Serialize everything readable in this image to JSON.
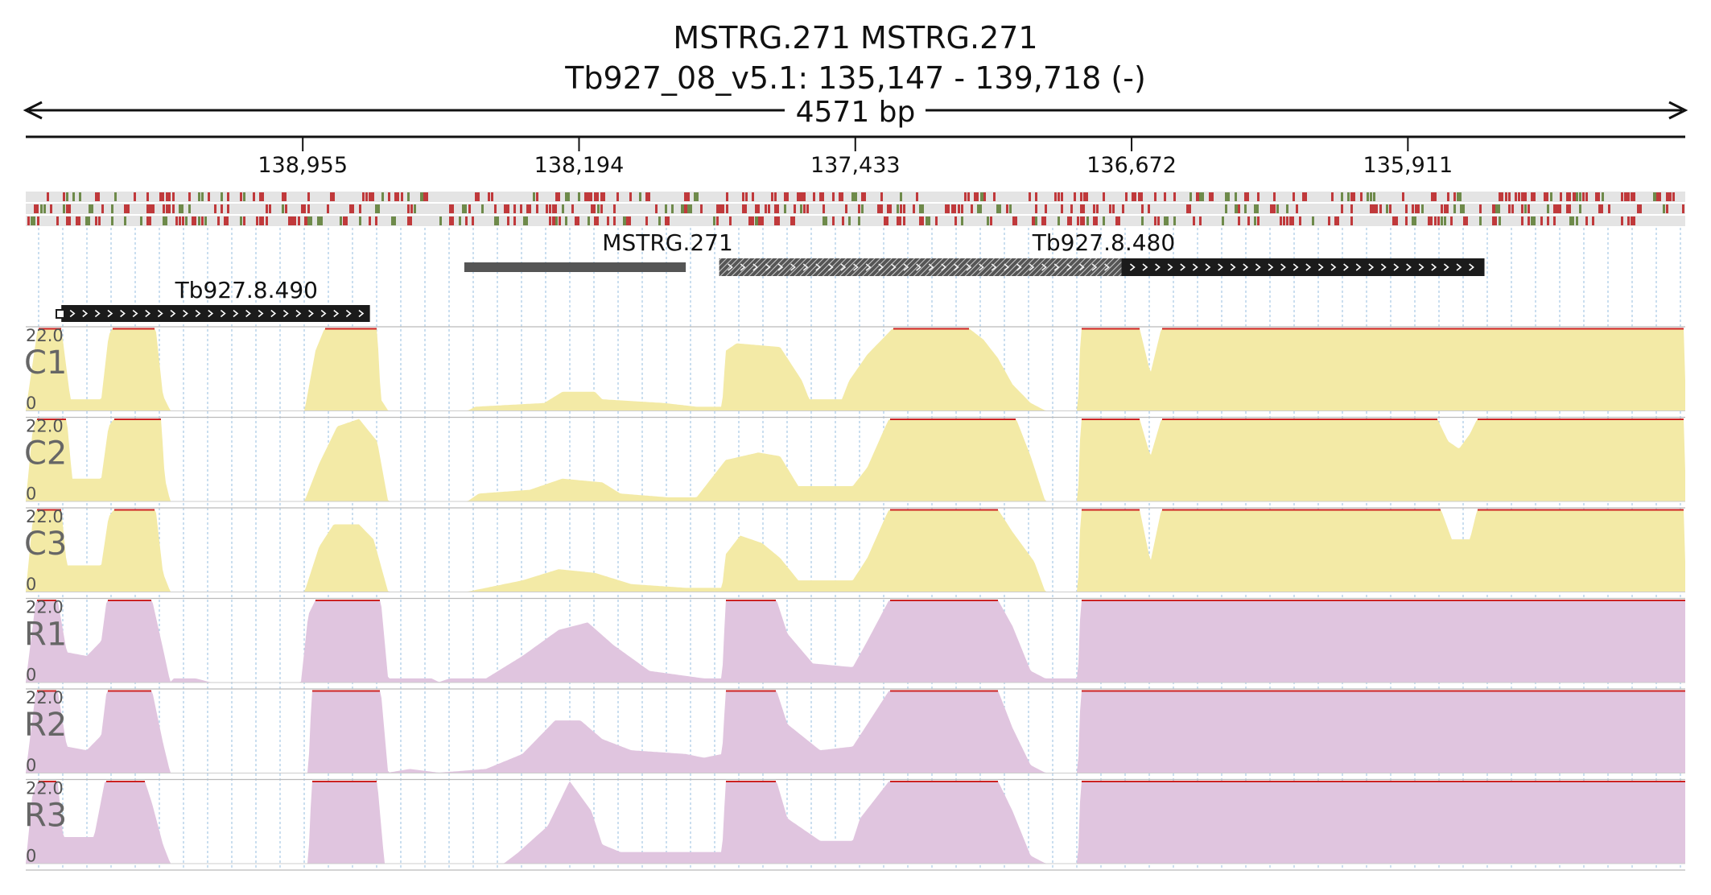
{
  "header": {
    "title_line1": "MSTRG.271  MSTRG.271",
    "title_line2": "Tb927_08_v5.1: 135,147 - 139,718 (-)",
    "span_label": "4571 bp"
  },
  "chart_data": {
    "type": "area",
    "chromosome": "Tb927_08_v5.1",
    "region": {
      "start": 135147,
      "end": 139718,
      "strand": "-"
    },
    "ruler": {
      "ticks": [
        {
          "pos": 138955,
          "label": "138,955"
        },
        {
          "pos": 138194,
          "label": "138,194"
        },
        {
          "pos": 137433,
          "label": "137,433"
        },
        {
          "pos": 136672,
          "label": "136,672"
        },
        {
          "pos": 135911,
          "label": "135,911"
        }
      ]
    },
    "genes": [
      {
        "name": "Tb927.8.490",
        "start": 138770,
        "end": 139620,
        "style": "black",
        "arrows": true
      },
      {
        "name": "MSTRG.271",
        "start": 137900,
        "end": 138510,
        "style": "gray",
        "arrows": false
      },
      {
        "name": "Tb927.8.480",
        "start": 136700,
        "end": 137808,
        "style": "hatched",
        "arrows": true
      },
      {
        "name": "Tb927.8.480",
        "start": 135700,
        "end": 136700,
        "style": "black",
        "arrows": true
      }
    ],
    "variant_colors": {
      "a": "#c0393b",
      "b": "#6e8a4a",
      "bg": "#e4e4e4"
    },
    "y_scale": {
      "max_label": "22.0",
      "min_label": "0",
      "ylim": [
        0,
        22
      ]
    },
    "saturation_line_color": "#cc2222",
    "series": [
      {
        "name": "C1",
        "color": "#f3eaa6",
        "profile": [
          [
            139718,
            0
          ],
          [
            139685,
            22
          ],
          [
            139620,
            22
          ],
          [
            139595,
            3
          ],
          [
            139510,
            3
          ],
          [
            139490,
            20
          ],
          [
            139480,
            22
          ],
          [
            139360,
            22
          ],
          [
            139340,
            4
          ],
          [
            139320,
            0
          ],
          [
            138950,
            0
          ],
          [
            138920,
            16
          ],
          [
            138895,
            22
          ],
          [
            138750,
            22
          ],
          [
            138740,
            3
          ],
          [
            138720,
            0
          ],
          [
            138500,
            0
          ],
          [
            138480,
            1
          ],
          [
            138290,
            2
          ],
          [
            138240,
            5
          ],
          [
            138150,
            5
          ],
          [
            138130,
            3
          ],
          [
            137960,
            2
          ],
          [
            137870,
            1
          ],
          [
            137800,
            1
          ],
          [
            137790,
            16
          ],
          [
            137760,
            18
          ],
          [
            137640,
            17
          ],
          [
            137580,
            8
          ],
          [
            137560,
            3
          ],
          [
            137470,
            3
          ],
          [
            137450,
            8
          ],
          [
            137400,
            15
          ],
          [
            137340,
            21
          ],
          [
            137330,
            22
          ],
          [
            137120,
            22
          ],
          [
            137080,
            19
          ],
          [
            137040,
            14
          ],
          [
            137000,
            7
          ],
          [
            136950,
            2
          ],
          [
            136910,
            0
          ],
          [
            136820,
            0
          ],
          [
            136812,
            22
          ],
          [
            136650,
            22
          ],
          [
            136620,
            10
          ],
          [
            136590,
            22
          ],
          [
            135150,
            22
          ],
          [
            135147,
            8
          ]
        ]
      },
      {
        "name": "C2",
        "color": "#f3eaa6",
        "profile": [
          [
            139718,
            0
          ],
          [
            139700,
            18
          ],
          [
            139690,
            22
          ],
          [
            139605,
            22
          ],
          [
            139590,
            6
          ],
          [
            139510,
            6
          ],
          [
            139490,
            20
          ],
          [
            139475,
            22
          ],
          [
            139345,
            22
          ],
          [
            139335,
            6
          ],
          [
            139320,
            0
          ],
          [
            138950,
            0
          ],
          [
            138910,
            10
          ],
          [
            138860,
            20
          ],
          [
            138800,
            22
          ],
          [
            138750,
            16
          ],
          [
            138720,
            0
          ],
          [
            138500,
            0
          ],
          [
            138470,
            2
          ],
          [
            138330,
            3
          ],
          [
            138240,
            6
          ],
          [
            138130,
            5
          ],
          [
            138080,
            2
          ],
          [
            137950,
            1
          ],
          [
            137870,
            1
          ],
          [
            137790,
            11
          ],
          [
            137700,
            13
          ],
          [
            137640,
            12
          ],
          [
            137590,
            4
          ],
          [
            137440,
            4
          ],
          [
            137400,
            9
          ],
          [
            137350,
            20
          ],
          [
            137340,
            22
          ],
          [
            136990,
            22
          ],
          [
            136950,
            12
          ],
          [
            136920,
            3
          ],
          [
            136910,
            0
          ],
          [
            136820,
            0
          ],
          [
            136812,
            22
          ],
          [
            136650,
            22
          ],
          [
            136620,
            12
          ],
          [
            136590,
            22
          ],
          [
            135830,
            22
          ],
          [
            135800,
            16
          ],
          [
            135770,
            14
          ],
          [
            135740,
            18
          ],
          [
            135720,
            22
          ],
          [
            135150,
            22
          ],
          [
            135147,
            8
          ]
        ]
      },
      {
        "name": "C3",
        "color": "#f3eaa6",
        "profile": [
          [
            139718,
            0
          ],
          [
            139700,
            18
          ],
          [
            139690,
            22
          ],
          [
            139620,
            22
          ],
          [
            139605,
            7
          ],
          [
            139510,
            7
          ],
          [
            139490,
            20
          ],
          [
            139475,
            22
          ],
          [
            139360,
            22
          ],
          [
            139340,
            5
          ],
          [
            139320,
            0
          ],
          [
            138950,
            0
          ],
          [
            138910,
            12
          ],
          [
            138870,
            18
          ],
          [
            138800,
            18
          ],
          [
            138760,
            14
          ],
          [
            138720,
            0
          ],
          [
            138500,
            0
          ],
          [
            138450,
            1
          ],
          [
            138350,
            3
          ],
          [
            138250,
            6
          ],
          [
            138150,
            5
          ],
          [
            138050,
            2
          ],
          [
            137900,
            1
          ],
          [
            137800,
            1
          ],
          [
            137790,
            10
          ],
          [
            137750,
            15
          ],
          [
            137690,
            13
          ],
          [
            137640,
            9
          ],
          [
            137590,
            3
          ],
          [
            137440,
            3
          ],
          [
            137400,
            9
          ],
          [
            137350,
            20
          ],
          [
            137340,
            22
          ],
          [
            137040,
            22
          ],
          [
            137000,
            16
          ],
          [
            136940,
            8
          ],
          [
            136910,
            0
          ],
          [
            136820,
            0
          ],
          [
            136812,
            22
          ],
          [
            136650,
            22
          ],
          [
            136620,
            8
          ],
          [
            136590,
            22
          ],
          [
            135820,
            22
          ],
          [
            135790,
            14
          ],
          [
            135740,
            14
          ],
          [
            135720,
            22
          ],
          [
            135150,
            22
          ],
          [
            135147,
            8
          ]
        ]
      },
      {
        "name": "R1",
        "color": "#e0c5df",
        "profile": [
          [
            139718,
            0
          ],
          [
            139690,
            22
          ],
          [
            139630,
            22
          ],
          [
            139605,
            8
          ],
          [
            139550,
            7
          ],
          [
            139510,
            11
          ],
          [
            139495,
            22
          ],
          [
            139370,
            22
          ],
          [
            139340,
            9
          ],
          [
            139320,
            0
          ],
          [
            139310,
            1
          ],
          [
            139250,
            1
          ],
          [
            139210,
            0
          ],
          [
            138960,
            0
          ],
          [
            138940,
            18
          ],
          [
            138920,
            22
          ],
          [
            138740,
            22
          ],
          [
            138720,
            1
          ],
          [
            138600,
            1
          ],
          [
            138580,
            0
          ],
          [
            138550,
            1
          ],
          [
            138450,
            1
          ],
          [
            138350,
            7
          ],
          [
            138250,
            14
          ],
          [
            138170,
            16
          ],
          [
            138100,
            10
          ],
          [
            138000,
            3
          ],
          [
            137850,
            1
          ],
          [
            137800,
            1
          ],
          [
            137790,
            22
          ],
          [
            137650,
            22
          ],
          [
            137620,
            13
          ],
          [
            137550,
            5
          ],
          [
            137440,
            4
          ],
          [
            137400,
            11
          ],
          [
            137340,
            22
          ],
          [
            137040,
            22
          ],
          [
            137000,
            15
          ],
          [
            136950,
            3
          ],
          [
            136910,
            1
          ],
          [
            136820,
            1
          ],
          [
            136812,
            22
          ],
          [
            135147,
            22
          ]
        ]
      },
      {
        "name": "R2",
        "color": "#e0c5df",
        "profile": [
          [
            139718,
            0
          ],
          [
            139690,
            22
          ],
          [
            139630,
            22
          ],
          [
            139605,
            7
          ],
          [
            139550,
            6
          ],
          [
            139510,
            10
          ],
          [
            139495,
            22
          ],
          [
            139370,
            22
          ],
          [
            139340,
            8
          ],
          [
            139320,
            0
          ],
          [
            138940,
            0
          ],
          [
            138930,
            22
          ],
          [
            138740,
            22
          ],
          [
            138720,
            0
          ],
          [
            138660,
            1
          ],
          [
            138580,
            0
          ],
          [
            138450,
            1
          ],
          [
            138350,
            5
          ],
          [
            138260,
            14
          ],
          [
            138190,
            14
          ],
          [
            138130,
            9
          ],
          [
            138050,
            6
          ],
          [
            137900,
            5
          ],
          [
            137850,
            4
          ],
          [
            137800,
            5
          ],
          [
            137790,
            22
          ],
          [
            137650,
            22
          ],
          [
            137620,
            13
          ],
          [
            137530,
            6
          ],
          [
            137440,
            7
          ],
          [
            137420,
            10
          ],
          [
            137340,
            22
          ],
          [
            137040,
            22
          ],
          [
            137000,
            12
          ],
          [
            136950,
            2
          ],
          [
            136910,
            0
          ],
          [
            136820,
            0
          ],
          [
            136812,
            22
          ],
          [
            135147,
            22
          ]
        ]
      },
      {
        "name": "R3",
        "color": "#e0c5df",
        "profile": [
          [
            139718,
            0
          ],
          [
            139700,
            18
          ],
          [
            139685,
            22
          ],
          [
            139630,
            22
          ],
          [
            139615,
            7
          ],
          [
            139530,
            7
          ],
          [
            139500,
            22
          ],
          [
            139390,
            22
          ],
          [
            139370,
            16
          ],
          [
            139340,
            5
          ],
          [
            139320,
            0
          ],
          [
            138940,
            0
          ],
          [
            138930,
            22
          ],
          [
            138750,
            22
          ],
          [
            138730,
            0
          ],
          [
            138400,
            0
          ],
          [
            138360,
            3
          ],
          [
            138280,
            10
          ],
          [
            138220,
            22
          ],
          [
            138160,
            14
          ],
          [
            138130,
            5
          ],
          [
            138080,
            3
          ],
          [
            137800,
            3
          ],
          [
            137790,
            22
          ],
          [
            137650,
            22
          ],
          [
            137620,
            12
          ],
          [
            137530,
            6
          ],
          [
            137440,
            6
          ],
          [
            137420,
            12
          ],
          [
            137340,
            22
          ],
          [
            137040,
            22
          ],
          [
            137000,
            14
          ],
          [
            136950,
            2
          ],
          [
            136910,
            0
          ],
          [
            136820,
            0
          ],
          [
            136812,
            22
          ],
          [
            135147,
            22
          ]
        ]
      }
    ]
  }
}
